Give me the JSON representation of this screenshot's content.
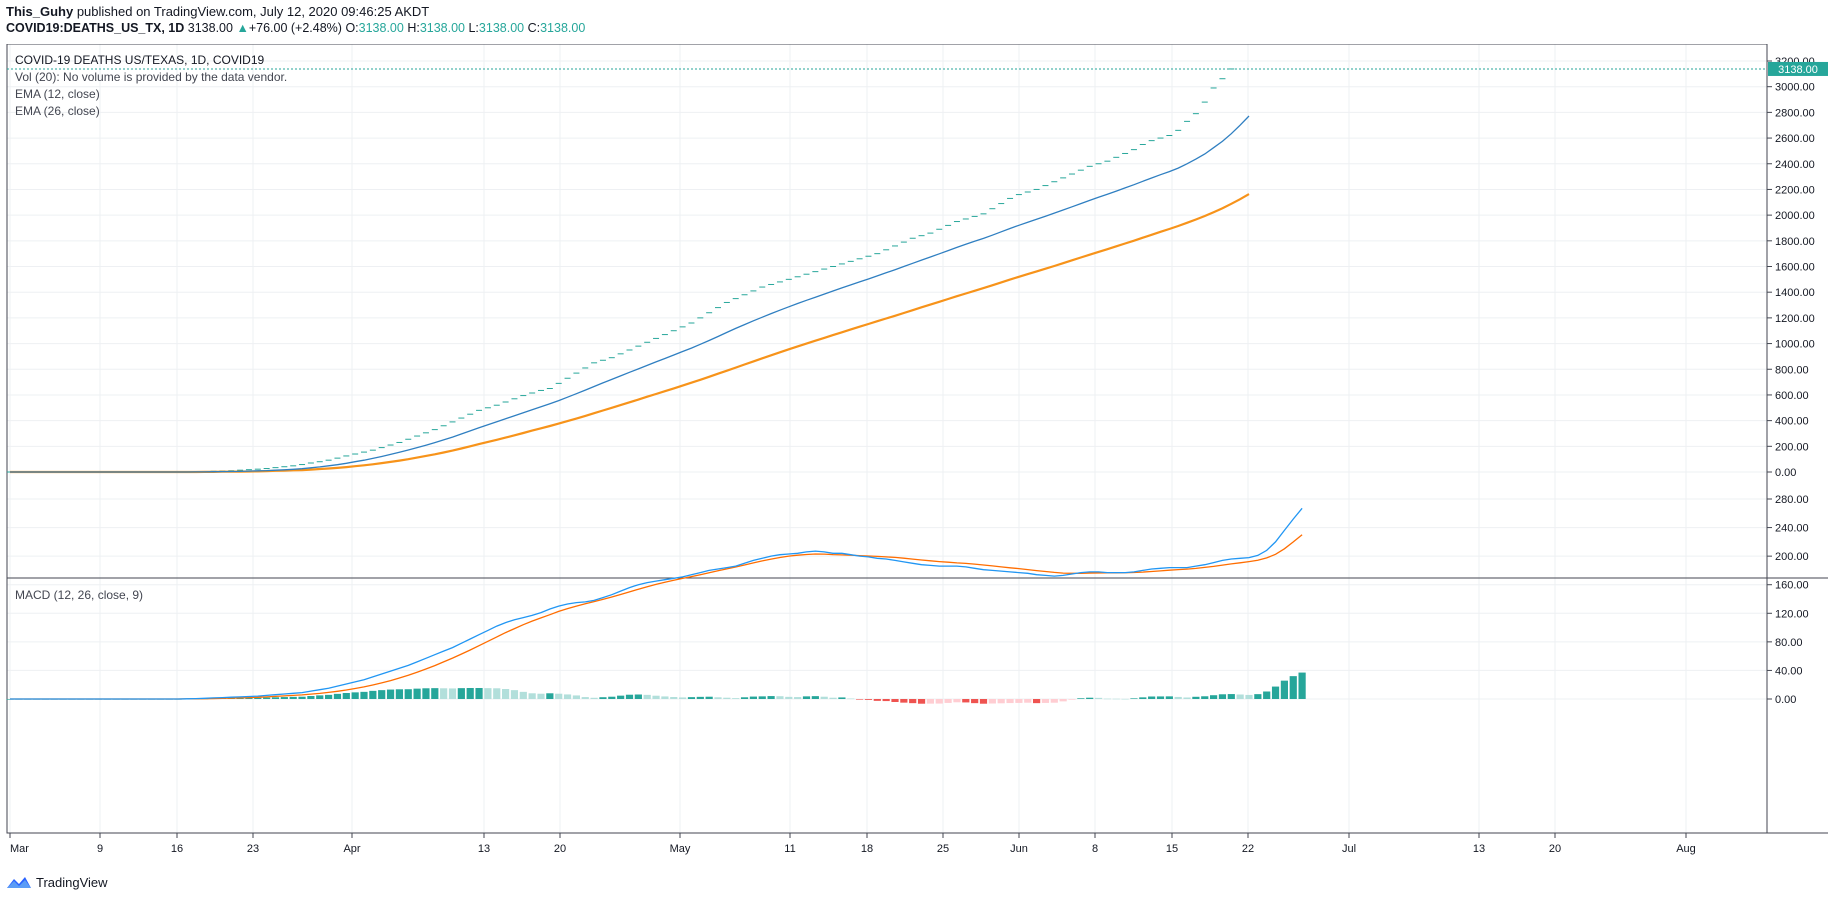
{
  "header": {
    "author": "This_Guhy",
    "published": "published on TradingView.com, July 12, 2020 09:46:25 AKDT",
    "symbol": "COVID19:DEATHS_US_TX, 1D",
    "last": "3138.00",
    "change": "+76.00 (+2.48%)",
    "o_label": "O:",
    "o_val": "3138.00",
    "h_label": "H:",
    "h_val": "3138.00",
    "l_label": "L:",
    "l_val": "3138.00",
    "c_label": "C:",
    "c_val": "3138.00"
  },
  "legend": {
    "title": "COVID-19 DEATHS US/TEXAS, 1D, COVID19",
    "vol": "Vol (20): No volume is provided by the data vendor.",
    "ema12": "EMA (12, close)",
    "ema26": "EMA (26, close)",
    "macd": "MACD (12, 26, close, 9)"
  },
  "price_badge": "3138.00",
  "footer": {
    "brand": "TradingView"
  },
  "colors": {
    "accent": "#26a69a",
    "ema12": "#2f7fc1",
    "ema26": "#f7931a",
    "macd_line": "#2196f3",
    "signal_line": "#ff6d00",
    "hist_pos_strong": "#26a69a",
    "hist_pos_weak": "#b2dfdb",
    "hist_neg_strong": "#ef5350",
    "hist_neg_weak": "#ffcdd2"
  },
  "chart_data": {
    "type": "line",
    "x_ticks": [
      "Mar",
      "9",
      "16",
      "23",
      "Apr",
      "13",
      "20",
      "May",
      "11",
      "18",
      "25",
      "Jun",
      "8",
      "15",
      "22",
      "Jul",
      "13",
      "20",
      "Aug"
    ],
    "price_axis": [
      "3200.00",
      "3000.00",
      "2800.00",
      "2600.00",
      "2400.00",
      "2200.00",
      "2000.00",
      "1800.00",
      "1600.00",
      "1400.00",
      "1200.00",
      "1000.00",
      "800.00",
      "600.00",
      "400.00",
      "200.00",
      "0.00"
    ],
    "macd_axis": [
      "280.00",
      "240.00",
      "200.00",
      "160.00",
      "120.00",
      "80.00",
      "40.00",
      "0.00"
    ],
    "price_ylim": [
      0,
      3200
    ],
    "macd_ylim": [
      0,
      280
    ],
    "series": [
      {
        "name": "COVID19:DEATHS_US_TX",
        "values": [
          0,
          0,
          0,
          0,
          0,
          0,
          0,
          0,
          0,
          0,
          0,
          0,
          0,
          0,
          0,
          0,
          0,
          0,
          0,
          0,
          1,
          2,
          4,
          6,
          8,
          10,
          14,
          18,
          22,
          27,
          34,
          41,
          48,
          58,
          70,
          80,
          92,
          108,
          125,
          140,
          155,
          170,
          190,
          210,
          230,
          255,
          280,
          305,
          330,
          360,
          390,
          420,
          450,
          480,
          500,
          520,
          545,
          570,
          595,
          615,
          635,
          650,
          690,
          730,
          770,
          810,
          850,
          870,
          890,
          920,
          950,
          980,
          1010,
          1040,
          1070,
          1100,
          1130,
          1160,
          1200,
          1240,
          1280,
          1320,
          1350,
          1380,
          1410,
          1440,
          1460,
          1480,
          1500,
          1520,
          1540,
          1560,
          1580,
          1600,
          1620,
          1640,
          1660,
          1680,
          1700,
          1730,
          1760,
          1790,
          1820,
          1840,
          1860,
          1890,
          1920,
          1950,
          1970,
          1990,
          2010,
          2050,
          2090,
          2130,
          2160,
          2180,
          2200,
          2230,
          2260,
          2290,
          2320,
          2350,
          2380,
          2400,
          2420,
          2450,
          2480,
          2510,
          2550,
          2580,
          2600,
          2620,
          2660,
          2730,
          2790,
          2880,
          2990,
          3062,
          3138
        ]
      },
      {
        "name": "EMA (12, close)",
        "values": [
          0,
          0,
          0,
          0,
          0,
          0,
          0,
          0,
          0,
          0,
          0,
          0,
          0,
          0,
          0,
          0,
          0,
          0,
          0,
          0,
          0,
          1,
          1,
          2,
          3,
          4,
          5,
          7,
          9,
          11,
          14,
          17,
          21,
          26,
          33,
          40,
          48,
          57,
          68,
          80,
          92,
          106,
          121,
          137,
          153,
          171,
          190,
          209,
          229,
          250,
          272,
          296,
          320,
          344,
          368,
          392,
          415,
          438,
          462,
          485,
          508,
          532,
          556,
          582,
          610,
          638,
          666,
          694,
          721,
          748,
          776,
          803,
          830,
          857,
          884,
          911,
          938,
          965,
          994,
          1024,
          1055,
          1087,
          1118,
          1148,
          1177,
          1205,
          1233,
          1260,
          1286,
          1312,
          1337,
          1361,
          1385,
          1409,
          1433,
          1457,
          1480,
          1503,
          1527,
          1551,
          1575,
          1600,
          1625,
          1650,
          1674,
          1699,
          1724,
          1749,
          1773,
          1796,
          1819,
          1844,
          1870,
          1896,
          1921,
          1945,
          1968,
          1992,
          2016,
          2040,
          2065,
          2090,
          2115,
          2139,
          2163,
          2187,
          2212,
          2237,
          2263,
          2289,
          2315,
          2339,
          2366,
          2400,
          2436,
          2476,
          2525,
          2575,
          2634,
          2700,
          2772
        ]
      },
      {
        "name": "EMA (26, close)",
        "values": [
          0,
          0,
          0,
          0,
          0,
          0,
          0,
          0,
          0,
          0,
          0,
          0,
          0,
          0,
          0,
          0,
          0,
          0,
          0,
          0,
          0,
          0,
          1,
          1,
          2,
          2,
          3,
          4,
          5,
          7,
          9,
          11,
          13,
          15,
          19,
          23,
          27,
          32,
          38,
          45,
          52,
          60,
          69,
          79,
          89,
          100,
          112,
          125,
          138,
          152,
          167,
          183,
          200,
          217,
          234,
          251,
          268,
          286,
          304,
          322,
          340,
          358,
          377,
          396,
          416,
          437,
          458,
          479,
          500,
          521,
          543,
          564,
          586,
          607,
          629,
          651,
          673,
          695,
          718,
          741,
          765,
          789,
          813,
          837,
          861,
          885,
          909,
          932,
          955,
          978,
          1000,
          1022,
          1044,
          1066,
          1088,
          1110,
          1131,
          1152,
          1174,
          1195,
          1216,
          1238,
          1260,
          1282,
          1303,
          1325,
          1347,
          1369,
          1390,
          1411,
          1432,
          1454,
          1476,
          1498,
          1520,
          1541,
          1562,
          1583,
          1604,
          1626,
          1648,
          1670,
          1692,
          1714,
          1735,
          1757,
          1779,
          1801,
          1824,
          1847,
          1870,
          1892,
          1915,
          1940,
          1966,
          1993,
          2023,
          2054,
          2088,
          2124,
          2164
        ]
      },
      {
        "name": "MACD (12, 26, close, 9)",
        "values": [
          0,
          0,
          0,
          0,
          0,
          0,
          0,
          0,
          0,
          0,
          0,
          0,
          0,
          0,
          0,
          0,
          0,
          0,
          0,
          0,
          0.3,
          0.6,
          1,
          1.5,
          2,
          2.5,
          3,
          3.5,
          4,
          5,
          6,
          7,
          8,
          9,
          11,
          13,
          15,
          18,
          21,
          24,
          27,
          31,
          35,
          39,
          43,
          47,
          52,
          57,
          62,
          67,
          72,
          78,
          84,
          90,
          96,
          102,
          107,
          111,
          114,
          117,
          121,
          126,
          130,
          133,
          135,
          136,
          138,
          142,
          146,
          151,
          156,
          160,
          163,
          165,
          167,
          169,
          171,
          174,
          177,
          180,
          182,
          184,
          186,
          190,
          194,
          197,
          200,
          202,
          203,
          204,
          206,
          207,
          206,
          204,
          204,
          202,
          200,
          199,
          197,
          196,
          194,
          192,
          190,
          188,
          187,
          186,
          186,
          186,
          185,
          183,
          181,
          180,
          179,
          178,
          177,
          176,
          174,
          173,
          172,
          173,
          175,
          177,
          178,
          178,
          177,
          177,
          177,
          178,
          180,
          182,
          183,
          184,
          184,
          184,
          186,
          188,
          191,
          194,
          196,
          197,
          198,
          201,
          208,
          220,
          236,
          252,
          267
        ]
      },
      {
        "name": "Signal",
        "values": [
          0,
          0,
          0,
          0,
          0,
          0,
          0,
          0,
          0,
          0,
          0,
          0,
          0,
          0,
          0,
          0,
          0,
          0,
          0,
          0,
          0.1,
          0.2,
          0.4,
          0.6,
          0.9,
          1.2,
          1.6,
          2,
          2.4,
          3,
          3.6,
          4.3,
          5,
          5.8,
          6.8,
          7.9,
          9.2,
          10.8,
          12.6,
          14.7,
          17,
          19.6,
          22.6,
          25.8,
          29.4,
          33.3,
          37.5,
          42,
          46.8,
          52,
          57.2,
          62.8,
          68.6,
          74.6,
          80.8,
          87,
          93,
          98.6,
          104,
          109,
          113.6,
          118,
          122.6,
          126.6,
          130,
          133.3,
          136.3,
          139.5,
          142.8,
          146.3,
          150,
          153.7,
          157.2,
          160.4,
          163.4,
          166.2,
          168.8,
          171.4,
          174,
          176.8,
          179.6,
          182.2,
          184.8,
          187.6,
          190.6,
          193.3,
          195.9,
          198.1,
          200,
          201.3,
          202.3,
          203,
          202.8,
          202.2,
          201.8,
          201.3,
          200.8,
          200.2,
          199.6,
          198.9,
          198.2,
          197.1,
          195.8,
          194.6,
          193.5,
          192.4,
          191.5,
          190.6,
          189.8,
          188.8,
          187.6,
          186.3,
          185,
          183.7,
          182.5,
          181.2,
          179.8,
          178.5,
          177.2,
          176.3,
          176,
          176,
          176.2,
          176.4,
          176.5,
          176.6,
          176.8,
          177.1,
          177.7,
          178.5,
          179.4,
          180.3,
          181.1,
          181.9,
          182.9,
          184.2,
          185.7,
          187.4,
          189.1,
          190.7,
          192.3,
          194.2,
          197.5,
          202.6,
          210.3,
          220,
          230
        ]
      }
    ]
  }
}
